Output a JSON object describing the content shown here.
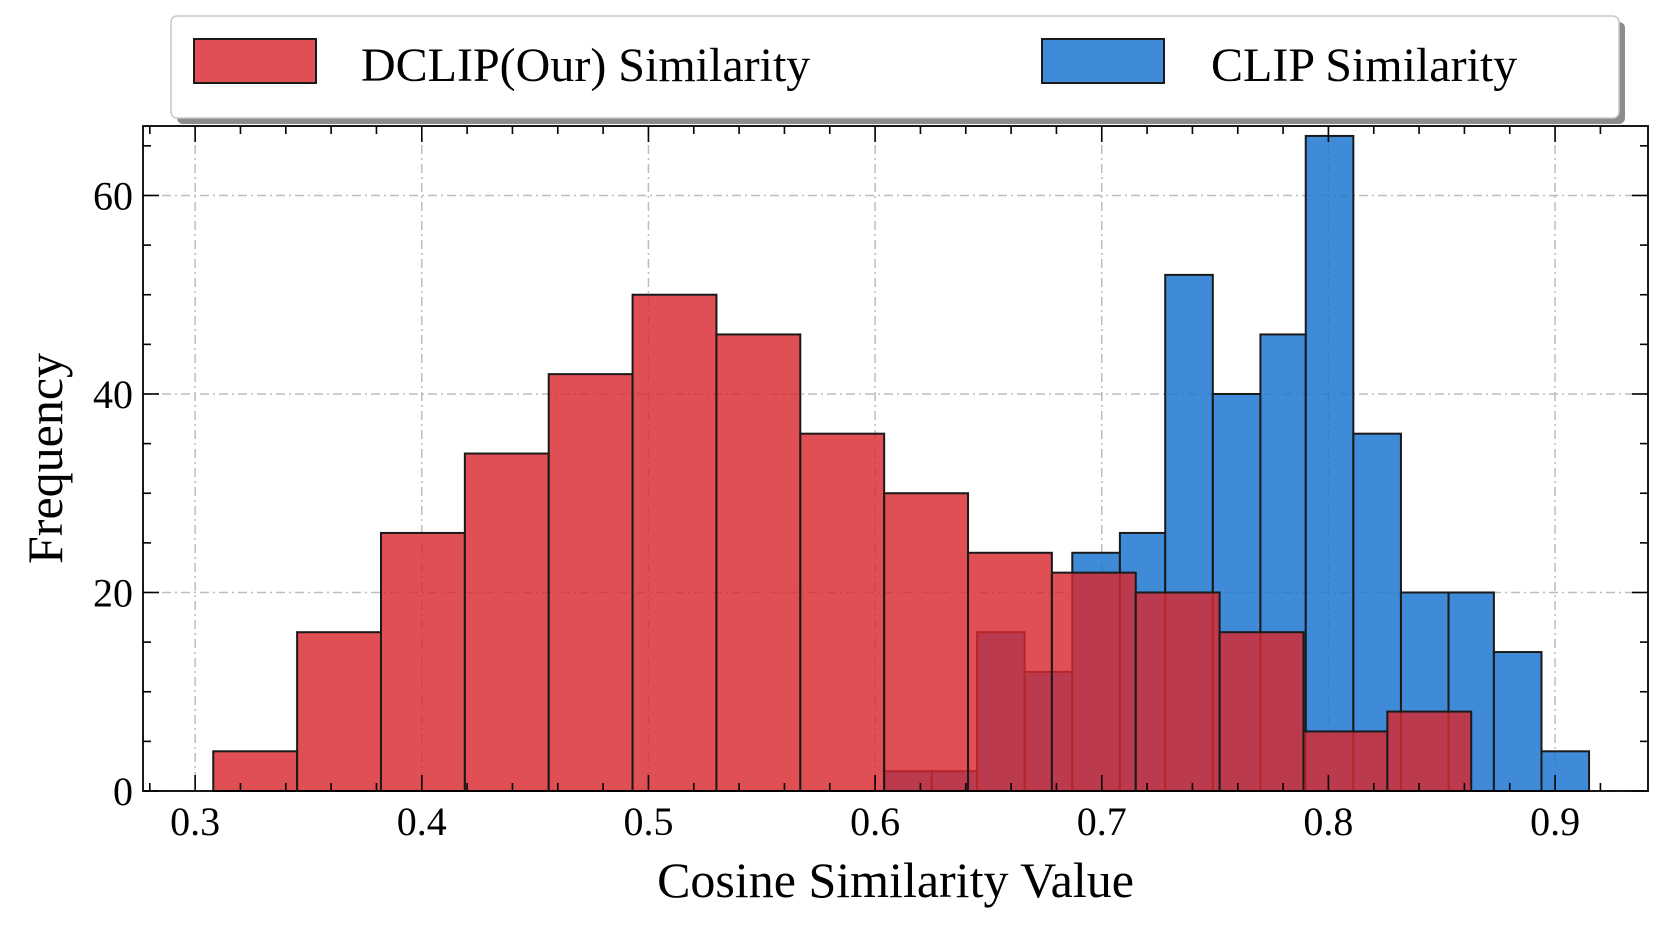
{
  "chart_data": {
    "type": "histogram",
    "title": "",
    "xlabel": "Cosine Similarity Value",
    "ylabel": "Frequency",
    "xlim": [
      0.277,
      0.941
    ],
    "ylim": [
      0,
      67
    ],
    "x_ticks": [
      0.3,
      0.4,
      0.5,
      0.6,
      0.7,
      0.8,
      0.9
    ],
    "x_tick_labels": [
      "0.3",
      "0.4",
      "0.5",
      "0.6",
      "0.7",
      "0.8",
      "0.9"
    ],
    "y_ticks": [
      0,
      20,
      40,
      60
    ],
    "y_tick_labels": [
      "0",
      "20",
      "40",
      "60"
    ],
    "grid": true,
    "legend_position": "top (above plot)",
    "series": [
      {
        "name": "CLIP Similarity",
        "color": "#1f77d0",
        "opacity": 0.85,
        "bins": [
          {
            "x0": 0.604,
            "x1": 0.625,
            "count": 2
          },
          {
            "x0": 0.625,
            "x1": 0.645,
            "count": 2
          },
          {
            "x0": 0.645,
            "x1": 0.666,
            "count": 16
          },
          {
            "x0": 0.666,
            "x1": 0.687,
            "count": 12
          },
          {
            "x0": 0.687,
            "x1": 0.708,
            "count": 24
          },
          {
            "x0": 0.708,
            "x1": 0.728,
            "count": 26
          },
          {
            "x0": 0.728,
            "x1": 0.749,
            "count": 52
          },
          {
            "x0": 0.749,
            "x1": 0.77,
            "count": 40
          },
          {
            "x0": 0.77,
            "x1": 0.79,
            "count": 46
          },
          {
            "x0": 0.79,
            "x1": 0.811,
            "count": 66
          },
          {
            "x0": 0.811,
            "x1": 0.832,
            "count": 36
          },
          {
            "x0": 0.832,
            "x1": 0.853,
            "count": 20
          },
          {
            "x0": 0.853,
            "x1": 0.873,
            "count": 20
          },
          {
            "x0": 0.873,
            "x1": 0.894,
            "count": 14
          },
          {
            "x0": 0.894,
            "x1": 0.915,
            "count": 4
          }
        ]
      },
      {
        "name": "DCLIP(Our) Similarity",
        "color": "#d8282e",
        "opacity": 0.82,
        "bins": [
          {
            "x0": 0.308,
            "x1": 0.345,
            "count": 4
          },
          {
            "x0": 0.345,
            "x1": 0.382,
            "count": 16
          },
          {
            "x0": 0.382,
            "x1": 0.419,
            "count": 26
          },
          {
            "x0": 0.419,
            "x1": 0.456,
            "count": 34
          },
          {
            "x0": 0.456,
            "x1": 0.493,
            "count": 42
          },
          {
            "x0": 0.493,
            "x1": 0.53,
            "count": 50
          },
          {
            "x0": 0.53,
            "x1": 0.567,
            "count": 46
          },
          {
            "x0": 0.567,
            "x1": 0.604,
            "count": 36
          },
          {
            "x0": 0.604,
            "x1": 0.641,
            "count": 30
          },
          {
            "x0": 0.641,
            "x1": 0.678,
            "count": 24
          },
          {
            "x0": 0.678,
            "x1": 0.715,
            "count": 22
          },
          {
            "x0": 0.715,
            "x1": 0.752,
            "count": 20
          },
          {
            "x0": 0.752,
            "x1": 0.789,
            "count": 16
          },
          {
            "x0": 0.789,
            "x1": 0.826,
            "count": 6
          },
          {
            "x0": 0.826,
            "x1": 0.863,
            "count": 8
          }
        ]
      }
    ]
  }
}
